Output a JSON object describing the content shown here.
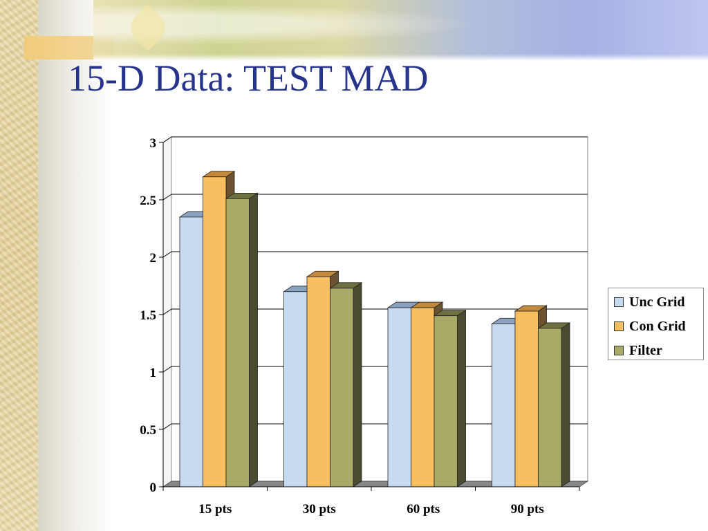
{
  "slide": {
    "title": "15-D Data: TEST MAD"
  },
  "colors": {
    "title": "#27348b",
    "unc_front": "#c6dbf0",
    "unc_side": "#5a6373",
    "unc_top": "#8aa2c0",
    "con_front": "#f7bf60",
    "con_side": "#6b5230",
    "con_top": "#c28a3a",
    "filter_front": "#a8aa68",
    "filter_side": "#4a4b30",
    "filter_top": "#6e7040",
    "floor": "#888888",
    "wall": "#ffffff",
    "grid": "#000000"
  },
  "chart_data": {
    "type": "bar",
    "title": "",
    "xlabel": "",
    "ylabel": "",
    "ylim": [
      0,
      3
    ],
    "y_ticks": [
      "0",
      "0.5",
      "1",
      "1.5",
      "2",
      "2.5",
      "3"
    ],
    "y_tick_values": [
      0,
      0.5,
      1,
      1.5,
      2,
      2.5,
      3
    ],
    "categories": [
      "15 pts",
      "30 pts",
      "60 pts",
      "90 pts"
    ],
    "grid": true,
    "legend_position": "right",
    "series": [
      {
        "name": "Unc Grid",
        "values": [
          2.35,
          1.7,
          1.56,
          1.42
        ]
      },
      {
        "name": "Con Grid",
        "values": [
          2.7,
          1.83,
          1.56,
          1.53
        ]
      },
      {
        "name": "Filter",
        "values": [
          2.51,
          1.73,
          1.49,
          1.38
        ]
      }
    ]
  }
}
